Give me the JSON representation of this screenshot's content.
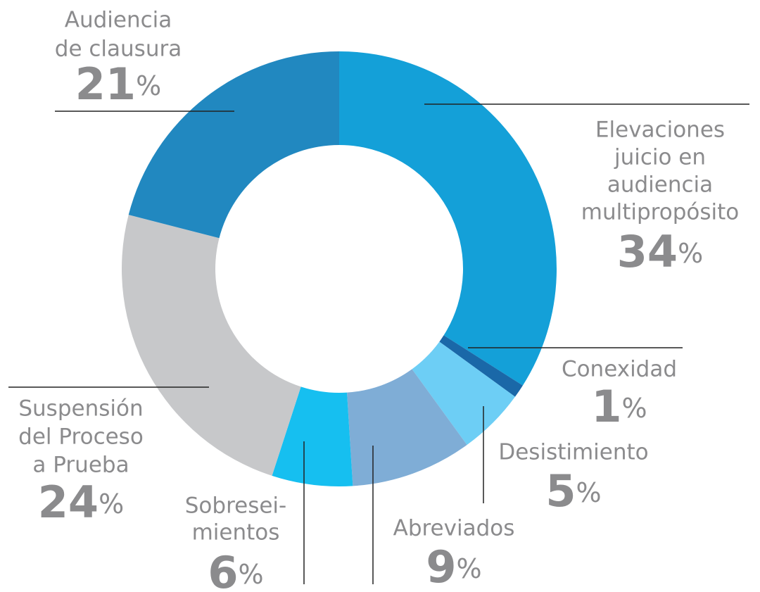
{
  "chart_data": {
    "type": "donut",
    "categories": [
      "Elevaciones\njuicio en\naudiencia\nmultipropósito",
      "Conexidad",
      "Desistimiento",
      "Abreviados",
      "Sobresei-\nmientos",
      "Suspensión\ndel Proceso\na Prueba",
      "Audiencia\nde clausura"
    ],
    "values": [
      34,
      1,
      5,
      9,
      6,
      24,
      21
    ],
    "value_labels": [
      "34%",
      "1%",
      "5%",
      "9%",
      "6%",
      "24%",
      "21%"
    ],
    "colors": [
      "#14a0d8",
      "#1a68a8",
      "#6dcef5",
      "#7fadd6",
      "#16bff0",
      "#c7c8ca",
      "#2188c0"
    ]
  }
}
